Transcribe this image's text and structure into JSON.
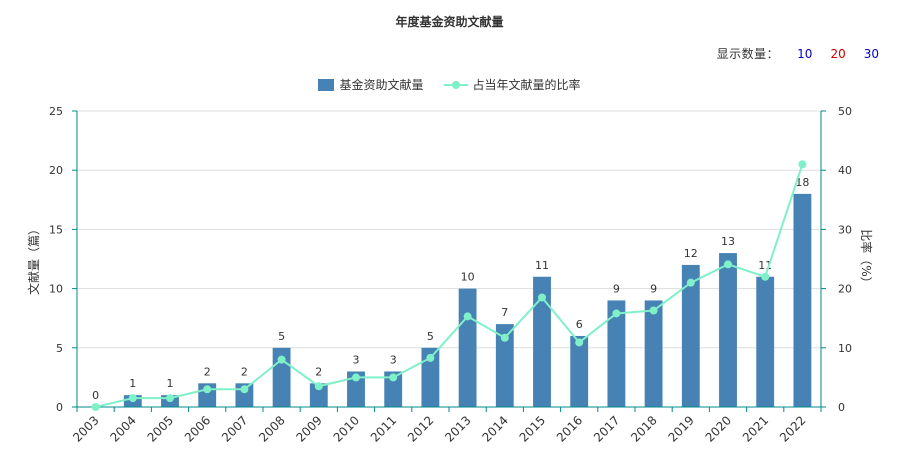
{
  "chart_data": {
    "type": "bar",
    "title": "年度基金资助文献量",
    "categories": [
      "2003",
      "2004",
      "2005",
      "2006",
      "2007",
      "2008",
      "2009",
      "2010",
      "2011",
      "2012",
      "2013",
      "2014",
      "2015",
      "2016",
      "2017",
      "2018",
      "2019",
      "2020",
      "2021",
      "2022"
    ],
    "series": [
      {
        "name": "基金资助文献量",
        "type": "bar",
        "axis": "left",
        "values": [
          0,
          1,
          1,
          2,
          2,
          5,
          2,
          3,
          3,
          5,
          10,
          7,
          11,
          6,
          9,
          9,
          12,
          13,
          11,
          18
        ]
      },
      {
        "name": "占当年文献量的比率",
        "type": "line",
        "axis": "right",
        "values": [
          0,
          1.5,
          1.5,
          3,
          3,
          8,
          3.5,
          5,
          5,
          8.3,
          15.3,
          11.7,
          18.5,
          10.9,
          15.8,
          16.3,
          21,
          24.1,
          22,
          41
        ]
      }
    ],
    "ylabel": "文献量（篇）",
    "y2label": "比率（%）",
    "ylim": [
      0,
      25
    ],
    "y2lim": [
      0,
      50
    ],
    "yticks": [
      0,
      5,
      10,
      15,
      20,
      25
    ],
    "y2ticks": [
      0,
      10,
      20,
      30,
      40,
      50
    ],
    "grid": true,
    "legend_position": "top-center",
    "colors": {
      "bar": "#4682b4",
      "line": "#7ff0c8",
      "axis": "#008b8b",
      "grid": "#dddddd"
    }
  },
  "controls": {
    "count_label": "显示数量：",
    "options": [
      {
        "label": "10",
        "color": "#0000cc"
      },
      {
        "label": "20",
        "color": "#cc0000"
      },
      {
        "label": "30",
        "color": "#0000cc"
      }
    ]
  }
}
